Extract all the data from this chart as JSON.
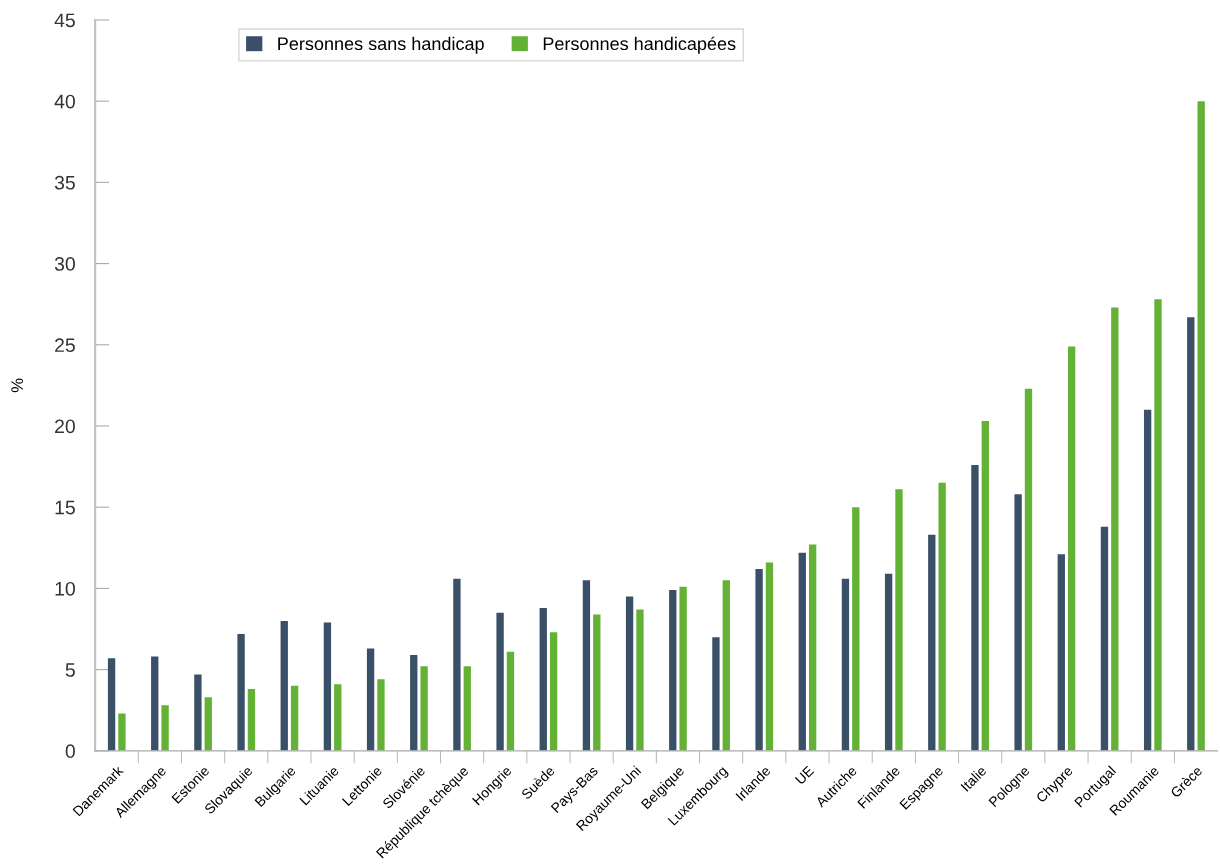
{
  "chart_data": {
    "type": "bar",
    "ylabel": "%",
    "categories": [
      "Danemark",
      "Allemagne",
      "Estonie",
      "Slovaquie",
      "Bulgarie",
      "Lituanie",
      "Lettonie",
      "Slovénie",
      "République tchèque",
      "Hongrie",
      "Suède",
      "Pays-Bas",
      "Royaume-Uni",
      "Belgique",
      "Luxembourg",
      "Irlande",
      "UE",
      "Autriche",
      "Finlande",
      "Espagne",
      "Italie",
      "Pologne",
      "Chypre",
      "Portugal",
      "Roumanie",
      "Grèce"
    ],
    "series": [
      {
        "name": "Personnes sans handicap",
        "color": "#3a5068",
        "values": [
          5.7,
          5.8,
          4.7,
          7.2,
          8.0,
          7.9,
          6.3,
          5.9,
          10.6,
          8.5,
          8.8,
          10.5,
          9.5,
          9.9,
          7.0,
          11.2,
          12.2,
          10.6,
          10.9,
          13.3,
          17.6,
          15.8,
          12.1,
          13.8,
          21.0,
          26.7
        ]
      },
      {
        "name": "Personnes handicapées",
        "color": "#63b236",
        "values": [
          2.3,
          2.8,
          3.3,
          3.8,
          4.0,
          4.1,
          4.4,
          5.2,
          5.2,
          6.1,
          7.3,
          8.4,
          8.7,
          10.1,
          10.5,
          11.6,
          12.7,
          15.0,
          16.1,
          16.5,
          20.3,
          22.3,
          24.9,
          27.3,
          27.8,
          40.0
        ]
      }
    ],
    "ylim": [
      0,
      45
    ],
    "yticks": [
      0,
      5,
      10,
      15,
      20,
      25,
      30,
      35,
      40,
      45
    ],
    "grid": false,
    "legend": "top left"
  }
}
